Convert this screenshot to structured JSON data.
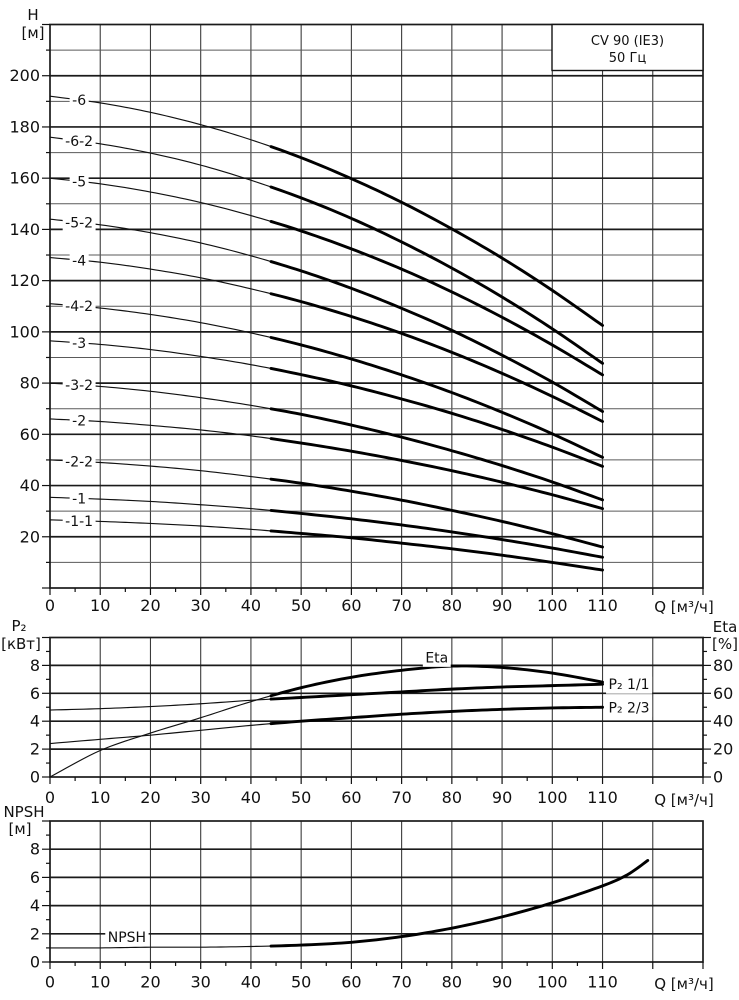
{
  "title_box": {
    "model": "CV 90 (IE3)",
    "frequency": "50 Гц"
  },
  "axis_headers": {
    "head": [
      "H",
      "[м]"
    ],
    "power": [
      "P₂",
      "[кВт]"
    ],
    "eta": [
      "Eta",
      "[%]"
    ],
    "npsh": [
      "NPSH",
      "[м]"
    ],
    "flow": "Q [м³/ч]"
  },
  "colors": {
    "ink": "#111111",
    "grid_major": "#1a1a1a",
    "grid_minor": "#5a5a5a",
    "grid_vertical": "#3c3c3c",
    "background": "#ffffff"
  },
  "chart_data": [
    {
      "id": "head-capacity",
      "type": "line",
      "title": "CV 90 (IE3) 50 Гц",
      "xlabel": "Q [м³/ч]",
      "ylabel": "H [м]",
      "xlim": [
        0,
        130
      ],
      "ylim": [
        0,
        220
      ],
      "grid": "on",
      "x_tick_labels": [
        0,
        10,
        20,
        30,
        40,
        50,
        60,
        70,
        80,
        90,
        100,
        110
      ],
      "y_tick_labels": [
        20,
        40,
        60,
        80,
        100,
        120,
        140,
        160,
        180,
        200
      ],
      "duty_range_q": [
        44,
        110
      ],
      "x": [
        0,
        10,
        20,
        30,
        40,
        50,
        60,
        70,
        80,
        90,
        100,
        110
      ],
      "series": [
        {
          "name": "-6",
          "values": [
            192,
            189.4,
            185.7,
            180.9,
            175.0,
            168.0,
            159.8,
            150.6,
            140.2,
            128.8,
            116.2,
            102.5
          ]
        },
        {
          "name": "-6-2",
          "values": [
            176,
            173.4,
            169.8,
            165.1,
            159.2,
            152.3,
            144.3,
            135.1,
            124.9,
            113.6,
            101.2,
            87.7
          ]
        },
        {
          "name": "-5",
          "values": [
            160,
            157.8,
            154.6,
            150.5,
            145.4,
            139.4,
            132.4,
            124.5,
            115.6,
            105.7,
            94.9,
            83.2
          ]
        },
        {
          "name": "-5-2",
          "values": [
            144,
            141.8,
            138.7,
            134.7,
            129.7,
            123.8,
            117.0,
            109.2,
            100.6,
            90.9,
            80.4,
            68.9
          ]
        },
        {
          "name": "-4",
          "values": [
            129,
            127.2,
            124.5,
            121.1,
            116.8,
            111.8,
            106.0,
            99.4,
            92.0,
            83.8,
            74.8,
            65.0
          ]
        },
        {
          "name": "-4-2",
          "values": [
            111,
            109.3,
            106.8,
            103.6,
            99.6,
            94.9,
            89.4,
            83.2,
            76.3,
            68.6,
            60.2,
            51.0
          ]
        },
        {
          "name": "-3",
          "values": [
            96.5,
            95.1,
            93.1,
            90.4,
            87.2,
            83.3,
            78.9,
            73.8,
            68.2,
            61.9,
            55.0,
            47.5
          ]
        },
        {
          "name": "-3-2",
          "values": [
            80,
            78.7,
            76.8,
            74.3,
            71.3,
            67.8,
            63.6,
            58.9,
            53.6,
            47.8,
            41.4,
            34.4
          ]
        },
        {
          "name": "-2",
          "values": [
            66,
            65.0,
            63.5,
            61.7,
            59.4,
            56.6,
            53.4,
            49.8,
            45.8,
            41.3,
            36.4,
            31.0
          ]
        },
        {
          "name": "-2-2",
          "values": [
            50,
            49.0,
            47.6,
            45.8,
            43.5,
            40.9,
            37.8,
            34.3,
            30.3,
            26.0,
            21.2,
            16.0
          ]
        },
        {
          "name": "-1",
          "values": [
            35.4,
            34.7,
            33.8,
            32.5,
            31.0,
            29.1,
            27.0,
            24.6,
            21.9,
            18.9,
            15.6,
            12.0
          ]
        },
        {
          "name": "-1-1",
          "values": [
            26.6,
            26.0,
            25.2,
            24.2,
            22.9,
            21.3,
            19.6,
            17.5,
            15.3,
            12.8,
            10.0,
            7.0
          ]
        }
      ]
    },
    {
      "id": "power-efficiency",
      "type": "line",
      "xlabel": "Q [м³/ч]",
      "ylabel_left": "P₂ [кВт]",
      "ylabel_right": "Eta [%]",
      "xlim": [
        0,
        130
      ],
      "ylim_left": [
        0,
        10
      ],
      "ylim_right": [
        0,
        100
      ],
      "grid": "on",
      "x_tick_labels": [
        0,
        10,
        20,
        30,
        40,
        50,
        60,
        70,
        80,
        90,
        100,
        110
      ],
      "y_tick_labels_left": [
        0,
        2,
        4,
        6,
        8
      ],
      "y_tick_labels_right": [
        0,
        20,
        40,
        60,
        80
      ],
      "duty_range_q": [
        44,
        110
      ],
      "x": [
        0,
        10,
        20,
        30,
        40,
        50,
        60,
        70,
        80,
        90,
        100,
        110
      ],
      "series": [
        {
          "name": "Eta",
          "axis": "right",
          "values": [
            0,
            19,
            31.5,
            42.5,
            54,
            64,
            71.5,
            76.5,
            79.5,
            78.5,
            74.5,
            68
          ]
        },
        {
          "name": "P₂ 1/1",
          "axis": "left",
          "values": [
            4.8,
            4.9,
            5.05,
            5.25,
            5.5,
            5.7,
            5.9,
            6.1,
            6.3,
            6.45,
            6.55,
            6.65
          ]
        },
        {
          "name": "P₂ 2/3",
          "axis": "left",
          "values": [
            2.4,
            2.7,
            3.0,
            3.35,
            3.7,
            4.0,
            4.25,
            4.5,
            4.7,
            4.85,
            4.95,
            5.0
          ]
        }
      ]
    },
    {
      "id": "npsh",
      "type": "line",
      "xlabel": "Q [м³/ч]",
      "ylabel": "NPSH [м]",
      "xlim": [
        0,
        130
      ],
      "ylim": [
        0,
        10
      ],
      "grid": "on",
      "x_tick_labels": [
        0,
        10,
        20,
        30,
        40,
        50,
        60,
        70,
        80,
        90,
        100,
        110
      ],
      "y_tick_labels": [
        0,
        2,
        4,
        6,
        8
      ],
      "duty_range_q": [
        44,
        119
      ],
      "series": [
        {
          "name": "NPSH",
          "x": [
            0,
            10,
            20,
            30,
            40,
            50,
            60,
            70,
            80,
            90,
            100,
            110,
            115,
            119
          ],
          "values": [
            1.0,
            1.0,
            1.05,
            1.05,
            1.1,
            1.2,
            1.4,
            1.8,
            2.4,
            3.2,
            4.2,
            5.4,
            6.2,
            7.2
          ]
        }
      ]
    }
  ]
}
